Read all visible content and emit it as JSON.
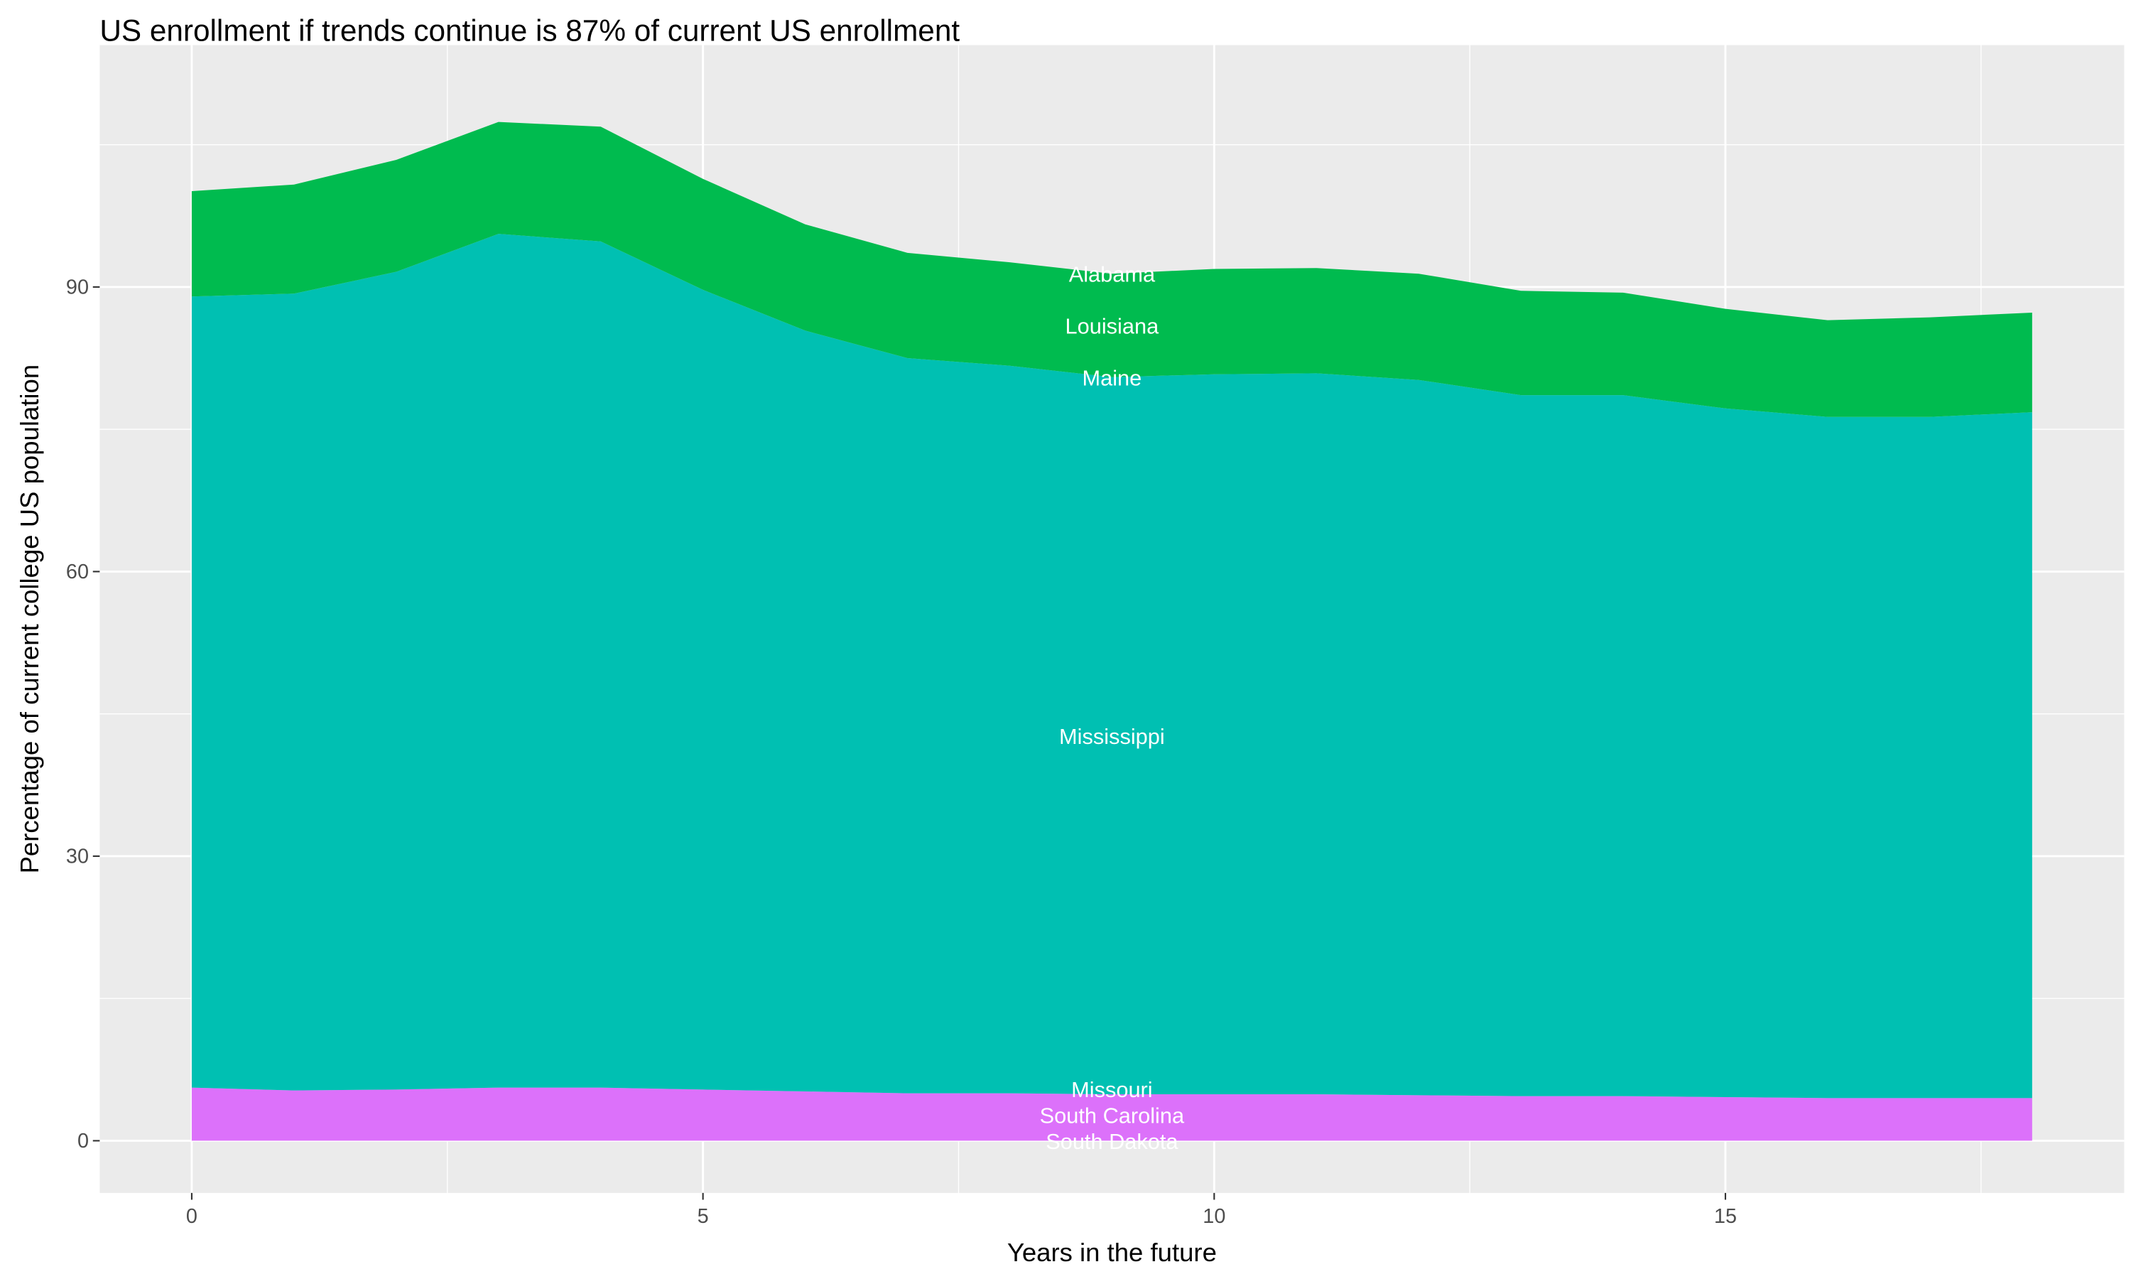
{
  "chart_data": {
    "type": "area",
    "stacked": true,
    "title": "US enrollment if trends continue is 87% of current US enrollment",
    "xlabel": "Years in the future",
    "ylabel": "Percentage of current college US population",
    "xlim": [
      -0.9,
      18.9
    ],
    "ylim": [
      -5.5,
      115.5
    ],
    "x_ticks": [
      0,
      5,
      10,
      15
    ],
    "y_ticks": [
      0,
      30,
      60,
      90
    ],
    "grid": true,
    "legend": "none (series labelled inline)",
    "label_x": 9,
    "x": [
      0,
      1,
      2,
      3,
      4,
      5,
      6,
      7,
      8,
      9,
      10,
      11,
      12,
      13,
      14,
      15,
      16,
      17,
      18
    ],
    "series": [
      {
        "name": "South Dakota",
        "color": "#DC71FA",
        "values": [
          0,
          0,
          0,
          0,
          0,
          0,
          0,
          0,
          0,
          0,
          0,
          0,
          0,
          0,
          0,
          0,
          0,
          0,
          0
        ]
      },
      {
        "name": "South Carolina",
        "color": "#DC71FA",
        "values": [
          0,
          0,
          0,
          0,
          0,
          0,
          0,
          0,
          0,
          0,
          0,
          0,
          0,
          0,
          0,
          0,
          0,
          0,
          0
        ]
      },
      {
        "name": "Missouri",
        "color": "#DC71FA",
        "values": [
          5.6,
          5.3,
          5.4,
          5.6,
          5.6,
          5.4,
          5.2,
          5.0,
          5.0,
          4.9,
          4.9,
          4.9,
          4.8,
          4.7,
          4.7,
          4.6,
          4.5,
          4.5,
          4.5
        ]
      },
      {
        "name": "Mississippi",
        "color": "#00C0B2",
        "values": [
          83.4,
          84.0,
          86.2,
          90.0,
          89.2,
          84.3,
          80.2,
          77.5,
          76.7,
          75.6,
          75.9,
          76.0,
          75.4,
          73.9,
          73.9,
          72.6,
          71.8,
          71.8,
          72.3
        ]
      },
      {
        "name": "Maine",
        "color": "#00C0B2",
        "values": [
          0,
          0,
          0,
          0,
          0,
          0,
          0,
          0,
          0,
          0,
          0,
          0,
          0,
          0,
          0,
          0,
          0,
          0,
          0
        ]
      },
      {
        "name": "Louisiana",
        "color": "#00BB4F",
        "values": [
          11.1,
          11.5,
          11.8,
          11.8,
          12.1,
          11.7,
          11.2,
          11.1,
          10.9,
          10.9,
          11.1,
          11.1,
          11.2,
          11.0,
          10.8,
          10.5,
          10.2,
          10.5,
          10.5
        ]
      },
      {
        "name": "Alabama",
        "color": "#00BB4F",
        "values": [
          0,
          0,
          0,
          0,
          0,
          0,
          0,
          0,
          0,
          0,
          0,
          0,
          0,
          0,
          0,
          0,
          0,
          0,
          0
        ]
      }
    ]
  }
}
